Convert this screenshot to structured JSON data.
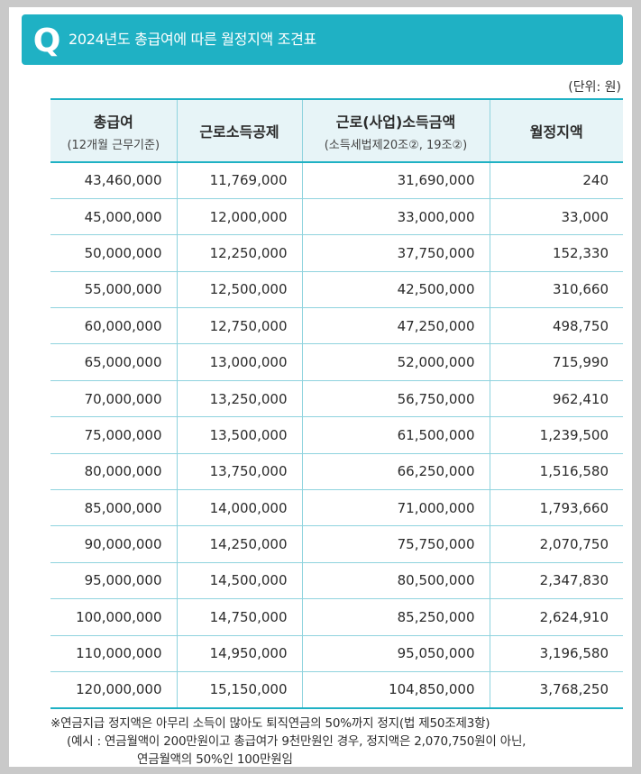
{
  "header": {
    "badge": "Q",
    "title": "2024년도 총급여에 따른 월정지액 조견표"
  },
  "unit": "(단위: 원)",
  "table": {
    "columns": [
      {
        "main": "총급여",
        "sub": "(12개월 근무기준)"
      },
      {
        "main": "근로소득공제",
        "sub": ""
      },
      {
        "main": "근로(사업)소득금액",
        "sub": "(소득세법제20조②, 19조②)"
      },
      {
        "main": "월정지액",
        "sub": ""
      }
    ],
    "rows": [
      [
        "43,460,000",
        "11,769,000",
        "31,690,000",
        "240"
      ],
      [
        "45,000,000",
        "12,000,000",
        "33,000,000",
        "33,000"
      ],
      [
        "50,000,000",
        "12,250,000",
        "37,750,000",
        "152,330"
      ],
      [
        "55,000,000",
        "12,500,000",
        "42,500,000",
        "310,660"
      ],
      [
        "60,000,000",
        "12,750,000",
        "47,250,000",
        "498,750"
      ],
      [
        "65,000,000",
        "13,000,000",
        "52,000,000",
        "715,990"
      ],
      [
        "70,000,000",
        "13,250,000",
        "56,750,000",
        "962,410"
      ],
      [
        "75,000,000",
        "13,500,000",
        "61,500,000",
        "1,239,500"
      ],
      [
        "80,000,000",
        "13,750,000",
        "66,250,000",
        "1,516,580"
      ],
      [
        "85,000,000",
        "14,000,000",
        "71,000,000",
        "1,793,660"
      ],
      [
        "90,000,000",
        "14,250,000",
        "75,750,000",
        "2,070,750"
      ],
      [
        "95,000,000",
        "14,500,000",
        "80,500,000",
        "2,347,830"
      ],
      [
        "100,000,000",
        "14,750,000",
        "85,250,000",
        "2,624,910"
      ],
      [
        "110,000,000",
        "14,950,000",
        "95,050,000",
        "3,196,580"
      ],
      [
        "120,000,000",
        "15,150,000",
        "104,850,000",
        "3,768,250"
      ]
    ]
  },
  "notes": {
    "line1": "※연금지급 정지액은 아무리 소득이 많아도 퇴직연금의 50%까지 정지(법 제50조제3항)",
    "line2": "(예시 :  연금월액이 200만원이고 총급여가 9천만원인 경우, 정지액은 2,070,750원이 아닌,",
    "line3": "연금월액의 50%인 100만원임"
  }
}
